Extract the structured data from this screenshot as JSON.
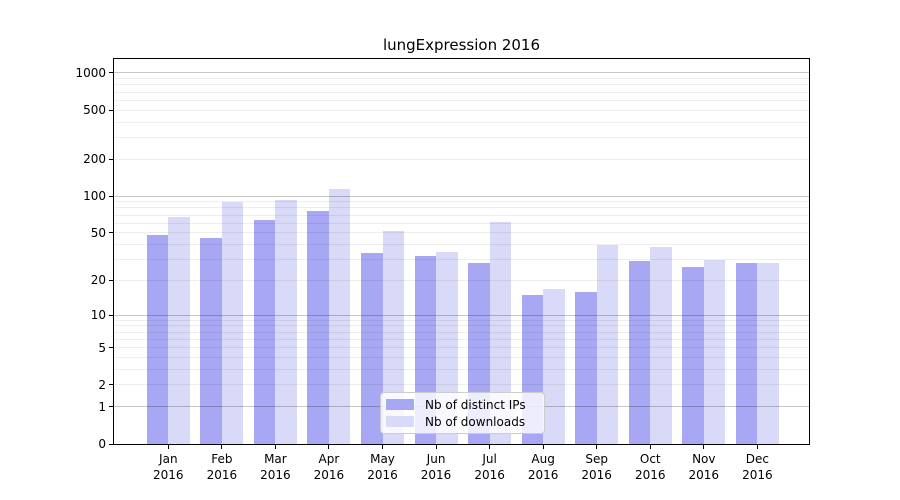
{
  "chart_data": {
    "type": "bar",
    "title": "lungExpression 2016",
    "categories": [
      "Jan",
      "Feb",
      "Mar",
      "Apr",
      "May",
      "Jun",
      "Jul",
      "Aug",
      "Sep",
      "Oct",
      "Nov",
      "Dec"
    ],
    "category_year": "2016",
    "series": [
      {
        "name": "Nb of distinct IPs",
        "color": "#a7a7f3",
        "values": [
          48,
          45,
          64,
          75,
          34,
          32,
          28,
          15,
          16,
          29,
          26,
          28
        ]
      },
      {
        "name": "Nb of downloads",
        "color": "#d9d9f8",
        "values": [
          67,
          90,
          93,
          114,
          52,
          35,
          61,
          17,
          40,
          38,
          30,
          28
        ]
      }
    ],
    "xlabel": "",
    "ylabel": "",
    "yscale": "log2(value+1)",
    "ylim": [
      0,
      1280
    ],
    "yticks": [
      0,
      1,
      2,
      5,
      10,
      20,
      50,
      100,
      200,
      500,
      1000
    ],
    "major_gridlines": [
      1,
      10,
      100,
      1000
    ],
    "minor_gridlines": [
      2,
      3,
      4,
      5,
      6,
      7,
      8,
      9,
      20,
      30,
      40,
      50,
      60,
      70,
      80,
      90,
      200,
      300,
      400,
      500,
      600,
      700,
      800,
      900
    ],
    "grid": "on",
    "legend_position": "lower-center"
  }
}
